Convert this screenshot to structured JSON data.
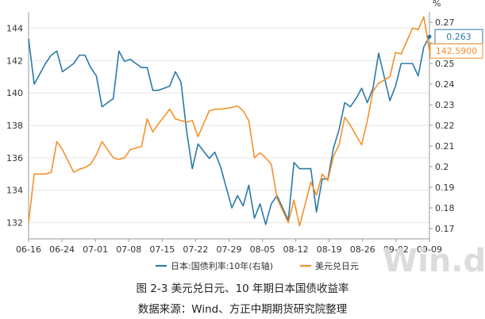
{
  "chart_data": {
    "type": "line",
    "left_axis": {
      "min": 131,
      "max": 145,
      "ticks": [
        132,
        134,
        136,
        138,
        140,
        142,
        144
      ]
    },
    "right_axis": {
      "min": 0.165,
      "max": 0.275,
      "unit": "%",
      "ticks": [
        "0.17",
        "0.18",
        "0.19",
        "0.2",
        "0.21",
        "0.22",
        "0.23",
        "0.24",
        "0.25",
        "0.26",
        "0.27"
      ]
    },
    "x_ticks": [
      "06-16",
      "06-24",
      "07-01",
      "07-08",
      "07-15",
      "07-22",
      "07-29",
      "08-05",
      "08-12",
      "08-19",
      "08-26",
      "09-02",
      "09-09"
    ],
    "grid": true,
    "legend_position": "bottom",
    "series": [
      {
        "name": "日本:国债利率:10年(右轴)",
        "axis": "right",
        "color": "#2a7aa8",
        "x": [
          0,
          1,
          3,
          4,
          5,
          6,
          8,
          9,
          10,
          11,
          12,
          13,
          15,
          16,
          17,
          18,
          19,
          20,
          21,
          22,
          23,
          25,
          26,
          27,
          28,
          29,
          30,
          32,
          33,
          34,
          36,
          37,
          38,
          39,
          40,
          41,
          42,
          43,
          44,
          46,
          47,
          48,
          50,
          51,
          52,
          53,
          54,
          55,
          56,
          57,
          58,
          59,
          60,
          61,
          62,
          64,
          65,
          66,
          68,
          69,
          70,
          71
        ],
        "values": [
          0.262,
          0.24,
          0.25,
          0.254,
          0.256,
          0.246,
          0.25,
          0.254,
          0.254,
          0.248,
          0.244,
          0.229,
          0.233,
          0.256,
          0.251,
          0.252,
          0.25,
          0.248,
          0.248,
          0.237,
          0.237,
          0.239,
          0.246,
          0.241,
          0.217,
          0.199,
          0.211,
          0.204,
          0.207,
          0.2,
          0.18,
          0.186,
          0.181,
          0.191,
          0.175,
          0.182,
          0.172,
          0.182,
          0.186,
          0.174,
          0.202,
          0.199,
          0.199,
          0.178,
          0.194,
          0.194,
          0.209,
          0.218,
          0.231,
          0.229,
          0.233,
          0.238,
          0.231,
          0.238,
          0.255,
          0.232,
          0.239,
          0.25,
          0.25,
          0.244,
          0.258,
          0.263
        ]
      },
      {
        "name": "美元兑日元",
        "axis": "left",
        "color": "#f5902a",
        "x": [
          0,
          1,
          3,
          4,
          5,
          6,
          8,
          9,
          10,
          11,
          12,
          13,
          15,
          16,
          17,
          18,
          19,
          20,
          21,
          22,
          23,
          25,
          26,
          27,
          28,
          29,
          30,
          32,
          33,
          34,
          36,
          37,
          38,
          39,
          40,
          41,
          42,
          43,
          44,
          46,
          47,
          48,
          50,
          51,
          52,
          53,
          54,
          55,
          56,
          57,
          58,
          59,
          60,
          61,
          62,
          64,
          65,
          66,
          68,
          69,
          70,
          71
        ],
        "values": [
          132.0,
          135.0,
          135.0,
          135.1,
          137.0,
          136.5,
          135.1,
          135.3,
          135.4,
          135.6,
          136.2,
          137.0,
          136.0,
          135.9,
          136.0,
          136.5,
          136.6,
          136.7,
          138.4,
          137.6,
          138.1,
          139.0,
          138.4,
          138.3,
          138.2,
          138.3,
          137.3,
          138.9,
          139.0,
          139.0,
          139.1,
          139.2,
          138.9,
          138.3,
          136.0,
          136.3,
          136.0,
          135.6,
          133.5,
          132.0,
          133.4,
          131.8,
          134.5,
          133.7,
          135.0,
          134.6,
          136.1,
          136.8,
          138.5,
          138.0,
          137.4,
          136.8,
          138.3,
          140.1,
          140.6,
          141.0,
          142.5,
          142.4,
          144.0,
          143.9,
          144.7,
          142.59
        ]
      }
    ],
    "callouts": {
      "right_value": "0.263",
      "left_value": "142.5900"
    }
  },
  "captions": {
    "title": "图 2-3 美元兑日元、10 年期日本国债收益率",
    "source": "数据来源：Wind、方正中期期货研究院整理"
  },
  "watermark": "Win.d"
}
